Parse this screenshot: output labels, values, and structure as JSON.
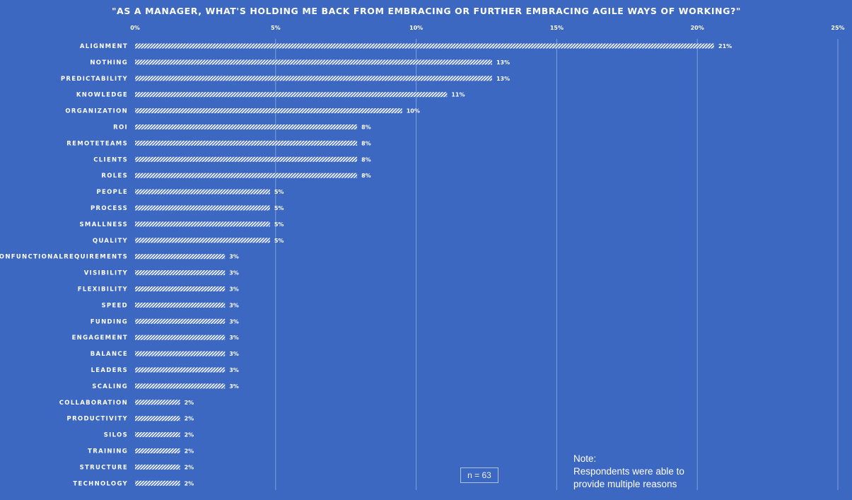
{
  "chart_data": {
    "type": "bar",
    "orientation": "horizontal",
    "title": "\"AS A MANAGER, WHAT'S HOLDING ME BACK FROM EMBRACING OR FURTHER EMBRACING AGILE WAYS OF WORKING?\"",
    "xlim": [
      0,
      25
    ],
    "xticks": [
      0,
      5,
      10,
      15,
      20,
      25
    ],
    "xtick_labels": [
      "0%",
      "5%",
      "10%",
      "15%",
      "20%",
      "25%"
    ],
    "categories": [
      "ALIGNMENT",
      "NOTHING",
      "PREDICTABILITY",
      "KNOWLEDGE",
      "ORGANIZATION",
      "ROI",
      "REMOTETEAMS",
      "CLIENTS",
      "ROLES",
      "PEOPLE",
      "PROCESS",
      "SMALLNESS",
      "QUALITY",
      "NONFUNCTIONALREQUIREMENTS",
      "VISIBILITY",
      "FLEXIBILITY",
      "SPEED",
      "FUNDING",
      "ENGAGEMENT",
      "BALANCE",
      "LEADERS",
      "SCALING",
      "COLLABORATION",
      "PRODUCTIVITY",
      "SILOS",
      "TRAINING",
      "STRUCTURE",
      "TECHNOLOGY"
    ],
    "values": [
      20.6,
      12.7,
      12.7,
      11.1,
      9.5,
      7.9,
      7.9,
      7.9,
      7.9,
      4.8,
      4.8,
      4.8,
      4.8,
      3.2,
      3.2,
      3.2,
      3.2,
      3.2,
      3.2,
      3.2,
      3.2,
      3.2,
      1.6,
      1.6,
      1.6,
      1.6,
      1.6,
      1.6
    ],
    "value_labels": [
      "21%",
      "13%",
      "13%",
      "11%",
      "10%",
      "8%",
      "8%",
      "8%",
      "8%",
      "5%",
      "5%",
      "5%",
      "5%",
      "3%",
      "3%",
      "3%",
      "3%",
      "3%",
      "3%",
      "3%",
      "3%",
      "3%",
      "2%",
      "2%",
      "2%",
      "2%",
      "2%",
      "2%"
    ],
    "grid": true
  },
  "sample_size": "n = 63",
  "note": {
    "heading": "Note:",
    "line1": "Respondents were able to",
    "line2": "provide multiple reasons"
  },
  "colors": {
    "background": "#3d68c2",
    "bar_hatch": "#ffffff",
    "grid": "#7f9fdc"
  }
}
